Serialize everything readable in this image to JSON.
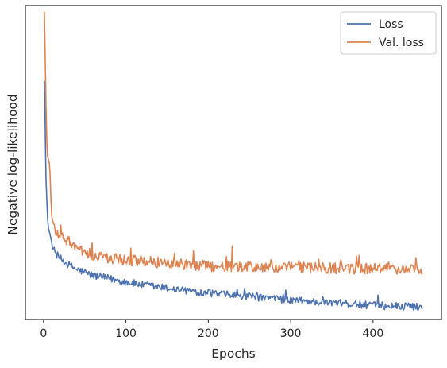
{
  "chart_data": {
    "type": "line",
    "title": "",
    "xlabel": "Epochs",
    "ylabel": "Negative log-likelihood",
    "xlim": [
      -22,
      483
    ],
    "ylim": [
      0,
      1
    ],
    "xticks": [
      0,
      100,
      200,
      300,
      400
    ],
    "xtick_labels": [
      "0",
      "100",
      "200",
      "300",
      "400"
    ],
    "yticks_shown": false,
    "grid": false,
    "legend_position": "top-right",
    "noise_amplitude_fraction": {
      "Loss": 0.012,
      "Val. loss": 0.018
    },
    "series": [
      {
        "name": "Loss",
        "color": "#4c72b0",
        "x": [
          1,
          2,
          3,
          4,
          5,
          6,
          8,
          10,
          12,
          15,
          20,
          25,
          30,
          40,
          50,
          60,
          80,
          100,
          120,
          150,
          180,
          200,
          230,
          260,
          300,
          350,
          400,
          430,
          460
        ],
        "y": [
          0.76,
          0.62,
          0.45,
          0.38,
          0.32,
          0.29,
          0.27,
          0.245,
          0.225,
          0.21,
          0.195,
          0.185,
          0.175,
          0.16,
          0.15,
          0.14,
          0.13,
          0.12,
          0.11,
          0.1,
          0.09,
          0.085,
          0.077,
          0.07,
          0.062,
          0.053,
          0.045,
          0.042,
          0.04
        ]
      },
      {
        "name": "Val. loss",
        "color": "#dd8452",
        "x": [
          1,
          2,
          3,
          4,
          5,
          6,
          7,
          8,
          9,
          10,
          12,
          15,
          20,
          25,
          30,
          40,
          60,
          80,
          100,
          150,
          200,
          250,
          300,
          350,
          400,
          460
        ],
        "y": [
          0.98,
          0.84,
          0.69,
          0.57,
          0.52,
          0.51,
          0.5,
          0.46,
          0.38,
          0.33,
          0.3,
          0.28,
          0.27,
          0.26,
          0.25,
          0.225,
          0.205,
          0.195,
          0.19,
          0.18,
          0.17,
          0.167,
          0.165,
          0.163,
          0.162,
          0.16
        ]
      }
    ]
  }
}
